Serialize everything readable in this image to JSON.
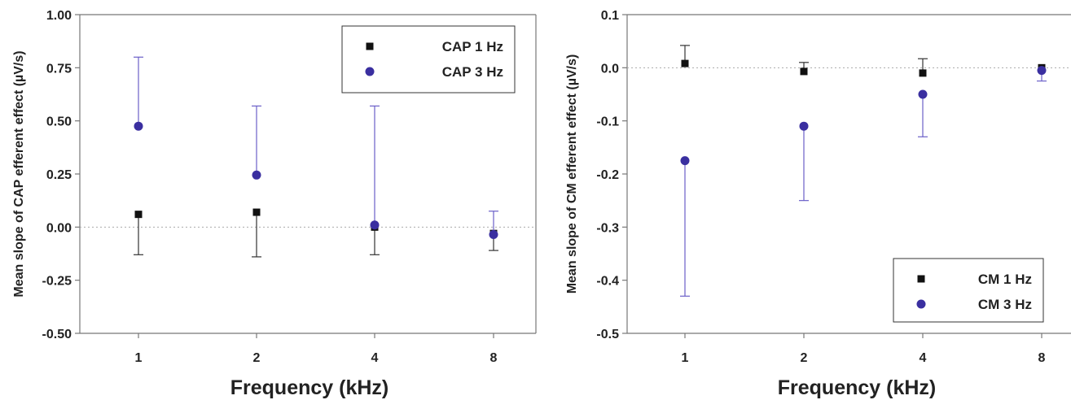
{
  "colors": {
    "series_1hz": "#111111",
    "series_3hz": "#3a2fa0",
    "errbar_1hz": "#333333",
    "errbar_3hz": "#6a5fc8",
    "zero_line": "#aaaaaa",
    "axes": "#777777"
  },
  "chart_data": [
    {
      "type": "scatter",
      "categories": [
        "1",
        "2",
        "4",
        "8"
      ],
      "xlabel": "Frequency (kHz)",
      "ylabel": "Mean slope of CAP efferent effect (µV/s)",
      "ylim": [
        -0.5,
        1.0
      ],
      "yticks": [
        "1.00",
        "0.75",
        "0.50",
        "0.25",
        "0.00",
        "-0.25",
        "-0.50"
      ],
      "ytick_values": [
        1.0,
        0.75,
        0.5,
        0.25,
        0.0,
        -0.25,
        -0.5
      ],
      "legend_position": "top-right",
      "series": [
        {
          "name": "CAP 1 Hz",
          "marker": "square-marker",
          "values": [
            0.06,
            0.07,
            0.0,
            -0.03
          ],
          "err_lo": [
            -0.13,
            -0.14,
            -0.13,
            -0.11
          ],
          "err_hi": [
            null,
            null,
            null,
            null
          ]
        },
        {
          "name": "CAP 3 Hz",
          "marker": "circle-marker",
          "values": [
            0.475,
            0.245,
            0.01,
            -0.035
          ],
          "err_lo": [
            null,
            null,
            null,
            null
          ],
          "err_hi": [
            0.8,
            0.57,
            0.57,
            0.075
          ]
        }
      ]
    },
    {
      "type": "scatter",
      "categories": [
        "1",
        "2",
        "4",
        "8"
      ],
      "xlabel": "Frequency (kHz)",
      "ylabel": "Mean slope of CM efferent effect (µV/s)",
      "ylim": [
        -0.5,
        0.1
      ],
      "yticks": [
        "0.1",
        "0.0",
        "-0.1",
        "-0.2",
        "-0.3",
        "-0.4",
        "-0.5"
      ],
      "ytick_values": [
        0.1,
        0.0,
        -0.1,
        -0.2,
        -0.3,
        -0.4,
        -0.5
      ],
      "legend_position": "bottom-right",
      "series": [
        {
          "name": "CM 1 Hz",
          "marker": "square-marker",
          "values": [
            0.008,
            -0.007,
            -0.01,
            0.0
          ],
          "err_lo": [
            null,
            null,
            null,
            null
          ],
          "err_hi": [
            0.042,
            0.01,
            0.017,
            null
          ]
        },
        {
          "name": "CM 3 Hz",
          "marker": "circle-marker",
          "values": [
            -0.175,
            -0.11,
            -0.05,
            -0.005
          ],
          "err_lo": [
            -0.43,
            -0.25,
            -0.13,
            -0.025
          ],
          "err_hi": [
            null,
            null,
            null,
            null
          ]
        }
      ]
    }
  ]
}
